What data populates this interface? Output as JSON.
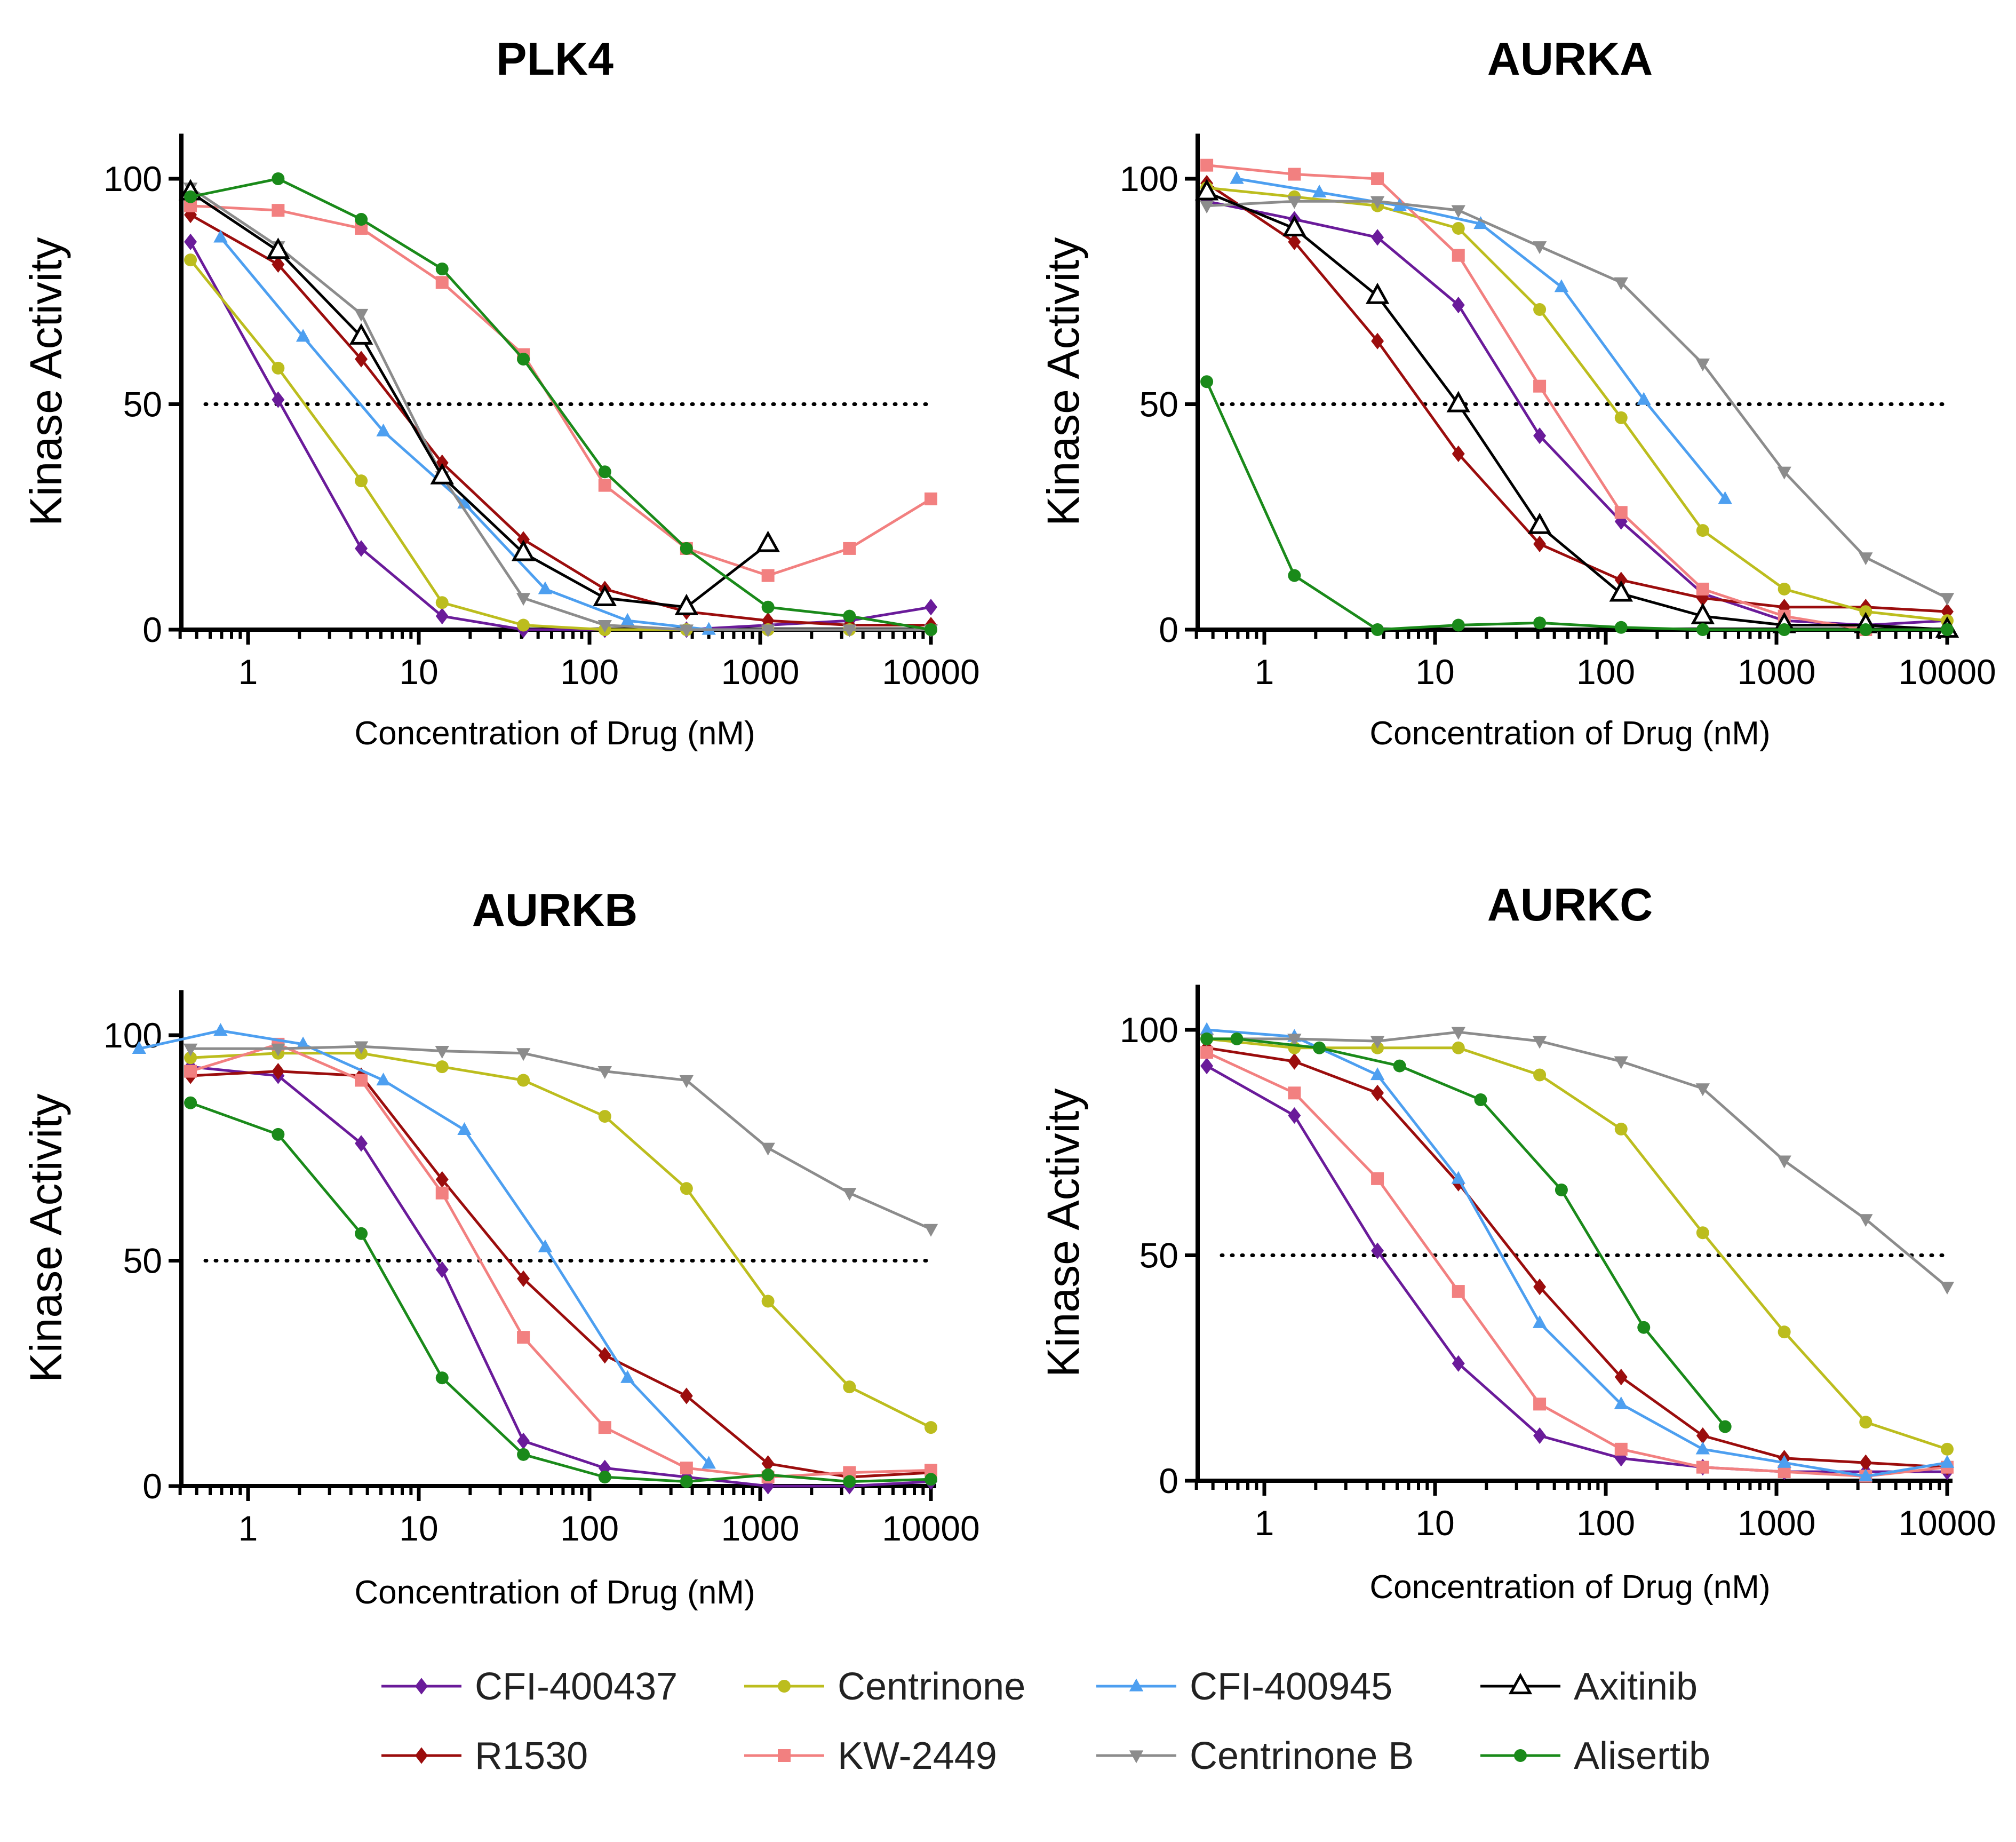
{
  "series_styles": [
    {
      "name": "CFI-400437",
      "color": "#6a1b9a",
      "marker": "diamond"
    },
    {
      "name": "R1530",
      "color": "#9b0d0d",
      "marker": "diamond"
    },
    {
      "name": "Centrinone",
      "color": "#bcbd1e",
      "marker": "circle"
    },
    {
      "name": "KW-2449",
      "color": "#f28080",
      "marker": "square"
    },
    {
      "name": "CFI-400945",
      "color": "#4d9ff0",
      "marker": "triangle"
    },
    {
      "name": "Centrinone B",
      "color": "#8c8c8c",
      "marker": "triangle-down"
    },
    {
      "name": "Axitinib",
      "color": "#000000",
      "marker": "open-triangle"
    },
    {
      "name": "Alisertib",
      "color": "#1a8a1a",
      "marker": "circle"
    }
  ],
  "legend": {
    "items": [
      "CFI-400437",
      "Centrinone",
      "CFI-400945",
      "Axitinib",
      "R1530",
      "KW-2449",
      "Centrinone B",
      "Alisertib"
    ]
  },
  "chart_data": [
    {
      "type": "line",
      "title": "PLK4",
      "xlabel": "Concentration of Drug (nM)",
      "ylabel": "Kinase  Activity",
      "xscale": "log",
      "xlim": [
        0.35,
        10000
      ],
      "ylim": [
        0,
        110
      ],
      "xticks": [
        "1",
        "10",
        "100",
        "1000",
        "10000"
      ],
      "yticks": [
        "0",
        "50",
        "100"
      ],
      "reference_line": 50,
      "series": [
        {
          "name": "CFI-400437",
          "x": [
            0.46,
            1.5,
            4.6,
            13.7,
            41,
            123,
            370,
            1111,
            3333,
            10000
          ],
          "y": [
            86,
            51,
            18,
            3,
            0,
            0,
            0,
            1,
            2,
            5
          ]
        },
        {
          "name": "R1530",
          "x": [
            0.46,
            1.5,
            4.6,
            13.7,
            41,
            123,
            370,
            1111,
            3333,
            10000
          ],
          "y": [
            92,
            81,
            60,
            37,
            20,
            9,
            4,
            2,
            1,
            1
          ]
        },
        {
          "name": "Centrinone",
          "x": [
            0.46,
            1.5,
            4.6,
            13.7,
            41,
            123,
            370,
            1111,
            3333,
            10000
          ],
          "y": [
            82,
            58,
            33,
            6,
            1,
            0,
            0,
            0,
            0,
            0
          ]
        },
        {
          "name": "KW-2449",
          "x": [
            0.46,
            1.5,
            4.6,
            13.7,
            41,
            123,
            370,
            1111,
            3333,
            10000
          ],
          "y": [
            94,
            93,
            89,
            77,
            61,
            32,
            18,
            12,
            18,
            29
          ]
        },
        {
          "name": "CFI-400945",
          "x": [
            0.69,
            2.1,
            6.2,
            18.5,
            55,
            167,
            500
          ],
          "y": [
            87,
            65,
            44,
            28,
            9,
            2,
            0
          ]
        },
        {
          "name": "Centrinone B",
          "x": [
            0.46,
            1.5,
            4.6,
            13.7,
            41,
            123,
            370,
            1111,
            3333,
            10000
          ],
          "y": [
            98,
            85,
            70,
            34,
            7,
            1,
            0,
            0,
            0,
            0
          ]
        },
        {
          "name": "Axitinib",
          "x": [
            0.46,
            1.5,
            4.6,
            13.7,
            41,
            123,
            370,
            1111
          ],
          "y": [
            97,
            84,
            65,
            34,
            17,
            7,
            5,
            19
          ]
        },
        {
          "name": "Alisertib",
          "x": [
            0.46,
            1.5,
            4.6,
            13.7,
            41,
            123,
            370,
            1111,
            3333,
            10000
          ],
          "y": [
            96,
            100,
            91,
            80,
            60,
            35,
            18,
            5,
            3,
            0
          ]
        }
      ]
    },
    {
      "type": "line",
      "title": "AURKA",
      "xlabel": "Concentration of Drug (nM)",
      "ylabel": "Kinase  Activity",
      "xscale": "log",
      "xlim": [
        0.35,
        10000
      ],
      "ylim": [
        0,
        110
      ],
      "xticks": [
        "1",
        "10",
        "100",
        "1000",
        "10000"
      ],
      "yticks": [
        "0",
        "50",
        "100"
      ],
      "reference_line": 50,
      "series": [
        {
          "name": "CFI-400437",
          "x": [
            0.46,
            1.5,
            4.6,
            13.7,
            41,
            123,
            370,
            1111,
            3333,
            10000
          ],
          "y": [
            95,
            91,
            87,
            72,
            43,
            24,
            8,
            2,
            1,
            2
          ]
        },
        {
          "name": "R1530",
          "x": [
            0.46,
            1.5,
            4.6,
            13.7,
            41,
            123,
            370,
            1111,
            3333,
            10000
          ],
          "y": [
            99,
            86,
            64,
            39,
            19,
            11,
            7,
            5,
            5,
            4
          ]
        },
        {
          "name": "Centrinone",
          "x": [
            0.46,
            1.5,
            4.6,
            13.7,
            41,
            123,
            370,
            1111,
            3333,
            10000
          ],
          "y": [
            98,
            96,
            94,
            89,
            71,
            47,
            22,
            9,
            4,
            2
          ]
        },
        {
          "name": "KW-2449",
          "x": [
            0.46,
            1.5,
            4.6,
            13.7,
            41,
            123,
            370,
            1111,
            3333
          ],
          "y": [
            103,
            101,
            100,
            83,
            54,
            26,
            9,
            3,
            0
          ]
        },
        {
          "name": "CFI-400945",
          "x": [
            0.69,
            2.1,
            6.2,
            18.5,
            55,
            167,
            500
          ],
          "y": [
            100,
            97,
            94,
            90,
            76,
            51,
            29
          ]
        },
        {
          "name": "Centrinone B",
          "x": [
            0.46,
            1.5,
            4.6,
            13.7,
            41,
            123,
            370,
            1111,
            3333,
            10000
          ],
          "y": [
            94,
            95,
            95,
            93,
            85,
            77,
            59,
            35,
            16,
            7
          ]
        },
        {
          "name": "Axitinib",
          "x": [
            0.46,
            1.5,
            4.6,
            13.7,
            41,
            123,
            370,
            1111,
            3333,
            10000
          ],
          "y": [
            97,
            89,
            74,
            50,
            23,
            8,
            3,
            1,
            1,
            0
          ]
        },
        {
          "name": "Alisertib",
          "x": [
            0.46,
            1.5,
            4.6,
            13.7,
            41,
            123,
            370,
            1111,
            3333,
            10000
          ],
          "y": [
            55,
            12,
            0,
            1,
            1.5,
            0.5,
            0,
            0,
            0,
            0
          ]
        }
      ]
    },
    {
      "type": "line",
      "title": "AURKB",
      "xlabel": "Concentration of Drug (nM)",
      "ylabel": "Kinase  Activity",
      "xscale": "log",
      "xlim": [
        0.35,
        10000
      ],
      "ylim": [
        0,
        110
      ],
      "xticks": [
        "1",
        "10",
        "100",
        "1000",
        "10000"
      ],
      "yticks": [
        "0",
        "50",
        "100"
      ],
      "reference_line": 50,
      "series": [
        {
          "name": "CFI-400437",
          "x": [
            0.46,
            1.5,
            4.6,
            13.7,
            41,
            123,
            370,
            1111,
            3333,
            10000
          ],
          "y": [
            93,
            91,
            76,
            48,
            10,
            4,
            2,
            0,
            0,
            1
          ]
        },
        {
          "name": "R1530",
          "x": [
            0.46,
            1.5,
            4.6,
            13.7,
            41,
            123,
            370,
            1111,
            3333,
            10000
          ],
          "y": [
            91,
            92,
            91,
            68,
            46,
            29,
            20,
            5,
            2,
            3
          ]
        },
        {
          "name": "Centrinone",
          "x": [
            0.46,
            1.5,
            4.6,
            13.7,
            41,
            123,
            370,
            1111,
            3333,
            10000
          ],
          "y": [
            95,
            96,
            96,
            93,
            90,
            82,
            66,
            41,
            22,
            13
          ]
        },
        {
          "name": "KW-2449",
          "x": [
            0.46,
            1.5,
            4.6,
            13.7,
            41,
            123,
            370,
            1111,
            3333,
            10000
          ],
          "y": [
            92,
            98,
            90,
            65,
            33,
            13,
            4,
            2,
            3,
            3.5
          ]
        },
        {
          "name": "CFI-400945",
          "x": [
            0.23,
            0.69,
            2.1,
            6.2,
            18.5,
            55,
            167,
            500
          ],
          "y": [
            97,
            101,
            98,
            90,
            79,
            53,
            24,
            5
          ]
        },
        {
          "name": "Centrinone B",
          "x": [
            0.46,
            1.5,
            4.6,
            13.7,
            41,
            123,
            370,
            1111,
            3333,
            10000
          ],
          "y": [
            97,
            97,
            97.5,
            96.5,
            96,
            92,
            90,
            75,
            65,
            57
          ]
        },
        {
          "name": "Alisertib",
          "x": [
            0.46,
            1.5,
            4.6,
            13.7,
            41,
            123,
            370,
            1111,
            3333,
            10000
          ],
          "y": [
            85,
            78,
            56,
            24,
            7,
            2,
            1,
            2.5,
            1,
            1.5
          ]
        }
      ]
    },
    {
      "type": "line",
      "title": "AURKC",
      "xlabel": "Concentration of Drug (nM)",
      "ylabel": "Kinase  Activity",
      "xscale": "log",
      "xlim": [
        0.35,
        10000
      ],
      "ylim": [
        0,
        110
      ],
      "xticks": [
        "1",
        "10",
        "100",
        "1000",
        "10000"
      ],
      "yticks": [
        "0",
        "50",
        "100"
      ],
      "reference_line": 50,
      "series": [
        {
          "name": "CFI-400437",
          "x": [
            0.46,
            1.5,
            4.6,
            13.7,
            41,
            123,
            370,
            1111,
            3333,
            10000
          ],
          "y": [
            92,
            81,
            51,
            26,
            10,
            5,
            3,
            2,
            2,
            2
          ]
        },
        {
          "name": "R1530",
          "x": [
            0.46,
            1.5,
            4.6,
            13.7,
            41,
            123,
            370,
            1111,
            3333,
            10000
          ],
          "y": [
            96,
            93,
            86,
            66,
            43,
            23,
            10,
            5,
            4,
            3
          ]
        },
        {
          "name": "Centrinone",
          "x": [
            0.46,
            1.5,
            4.6,
            13.7,
            41,
            123,
            370,
            1111,
            3333,
            10000
          ],
          "y": [
            98,
            96,
            96,
            96,
            90,
            78,
            55,
            33,
            13,
            7
          ]
        },
        {
          "name": "KW-2449",
          "x": [
            0.46,
            1.5,
            4.6,
            13.7,
            41,
            123,
            370,
            1111,
            3333,
            10000
          ],
          "y": [
            95,
            86,
            67,
            42,
            17,
            7,
            3,
            2,
            1,
            3
          ]
        },
        {
          "name": "CFI-400945",
          "x": [
            0.46,
            1.5,
            4.6,
            13.7,
            41,
            123,
            370,
            1111,
            3333,
            10000
          ],
          "y": [
            100,
            98.5,
            90,
            67,
            35,
            17,
            7,
            4,
            1,
            4
          ]
        },
        {
          "name": "Centrinone B",
          "x": [
            0.46,
            1.5,
            4.6,
            13.7,
            41,
            123,
            370,
            1111,
            3333,
            10000
          ],
          "y": [
            98,
            98,
            97.5,
            99.5,
            97.5,
            93,
            87,
            71,
            58,
            43
          ]
        },
        {
          "name": "Alisertib",
          "x": [
            0.46,
            0.69,
            2.1,
            6.2,
            18.5,
            55,
            167,
            500
          ],
          "y": [
            98,
            98,
            96,
            92,
            84.5,
            64.5,
            34,
            12
          ]
        }
      ]
    }
  ]
}
